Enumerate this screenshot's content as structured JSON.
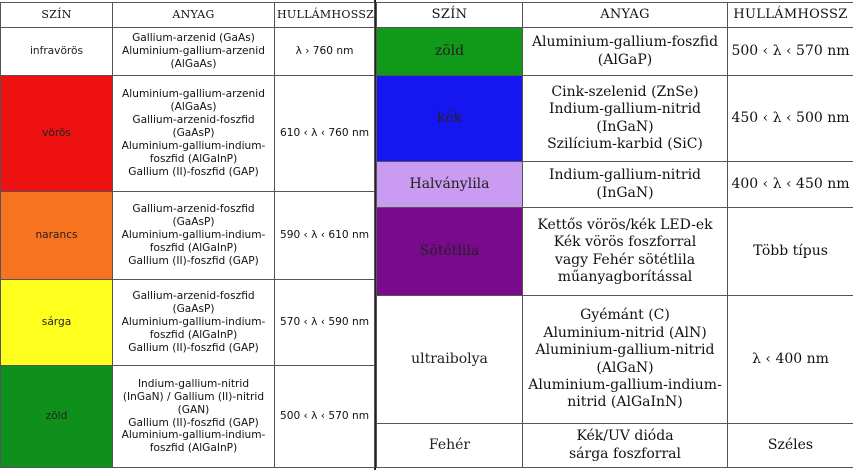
{
  "left_table": {
    "headers": {
      "color": "SZÍN",
      "material": "ANYAG",
      "wavelength": "HULLÁMHOSSZ"
    },
    "rows": [
      {
        "color": "infravörös",
        "swatch": "#ffffff",
        "materials": [
          "Gallium-arzenid (GaAs)",
          "Aluminium-gallium-arzenid",
          "(AlGaAs)"
        ],
        "wavelength": "λ › 760 nm"
      },
      {
        "color": "vörös",
        "swatch": "#ee1111",
        "materials": [
          "Aluminium-gallium-arzenid",
          "(AlGaAs)",
          "Gallium-arzenid-foszfid",
          "(GaAsP)",
          "Aluminium-gallium-indium-",
          "foszfid (AlGaInP)",
          "Gallium (II)-foszfid (GAP)"
        ],
        "wavelength": "610 ‹ λ ‹ 760 nm"
      },
      {
        "color": "narancs",
        "swatch": "#f77320",
        "materials": [
          "Gallium-arzenid-foszfid",
          "(GaAsP)",
          "Aluminium-gallium-indium-",
          "foszfid (AlGaInP)",
          "Gallium (II)-foszfid (GAP)"
        ],
        "wavelength": "590 ‹ λ ‹ 610 nm"
      },
      {
        "color": "sárga",
        "swatch": "#ffff1e",
        "materials": [
          "Gallium-arzenid-foszfid",
          "(GaAsP)",
          "Aluminium-gallium-indium-",
          "foszfid (AlGaInP)",
          "Gallium (II)-foszfid (GAP)"
        ],
        "wavelength": "570 ‹ λ ‹ 590 nm"
      },
      {
        "color": "zöld",
        "swatch": "#0f8f1c",
        "materials": [
          "Indium-gallium-nitrid",
          "(InGaN) / Gallium (II)-nitrid",
          "(GAN)",
          "Gallium (II)-foszfid (GAP)",
          "Aluminium-gallium-indium-",
          "foszfid (AlGaInP)"
        ],
        "wavelength": "500 ‹ λ ‹ 570 nm"
      }
    ]
  },
  "right_table": {
    "headers": {
      "color": "SZÍN",
      "material": "ANYAG",
      "wavelength": "HULLÁMHOSSZ"
    },
    "rows": [
      {
        "color": "zöld",
        "swatch": "#119a19",
        "materials": [
          "Aluminium-gallium-foszfid",
          "(AlGaP)"
        ],
        "wavelength": "500 ‹ λ ‹ 570 nm"
      },
      {
        "color": "kék",
        "swatch": "#1616f0",
        "materials": [
          "Cink-szelenid (ZnSe)",
          "Indium-gallium-nitrid",
          "(InGaN)",
          "Szilícium-karbid (SiC)"
        ],
        "wavelength": "450 ‹ λ ‹ 500 nm"
      },
      {
        "color": "Halványlila",
        "swatch": "#c99cf2",
        "materials": [
          "Indium-gallium-nitrid",
          "(InGaN)"
        ],
        "wavelength": "400 ‹ λ ‹ 450 nm"
      },
      {
        "color": "Sötétlila",
        "swatch": "#7a0a8c",
        "materials": [
          "Kettős vörös/kék LED-ek",
          "Kék vörös foszforral",
          "vagy Fehér sötétlila",
          "műanyagborítással"
        ],
        "wavelength": "Több típus"
      },
      {
        "color": "ultraibolya",
        "swatch": "#ffffff",
        "materials": [
          "Gyémánt (C)",
          "Aluminium-nitrid (AlN)",
          "Aluminium-gallium-nitrid",
          "(AlGaN)",
          "Aluminium-gallium-indium-",
          "nitrid (AlGaInN)"
        ],
        "wavelength": "λ ‹ 400 nm"
      },
      {
        "color": "Fehér",
        "swatch": "#ffffff",
        "materials": [
          "Kék/UV dióda",
          "sárga foszforral"
        ],
        "wavelength": "Széles"
      }
    ]
  }
}
